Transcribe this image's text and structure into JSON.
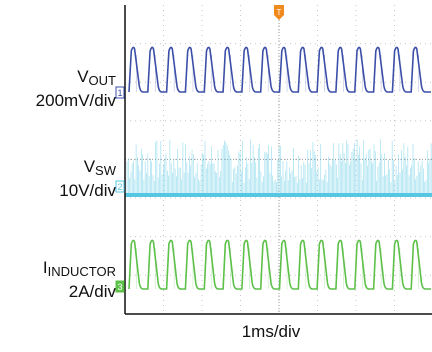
{
  "chart_data": {
    "type": "line",
    "xlabel": "1ms/div",
    "grid": true,
    "series": [
      {
        "name": "V_OUT",
        "sub": "OUT",
        "scale": "200mV/div",
        "marker": "1",
        "color": "#3c4fa8"
      },
      {
        "name": "V_SW",
        "sub": "SW",
        "scale": "10V/div",
        "marker": "2",
        "color": "#56c7e3"
      },
      {
        "name": "I_INDUCTOR",
        "sub": "INDUCTOR",
        "scale": "2A/div",
        "marker": "3",
        "color": "#5cc049"
      }
    ],
    "trigger_marker": "T",
    "pulse_count": 16
  },
  "labels": {
    "vout_main": "V",
    "vout_sub": "OUT",
    "vout_scale": "200mV/div",
    "vsw_main": "V",
    "vsw_sub": "SW",
    "vsw_scale": "10V/div",
    "ind_main": "I",
    "ind_sub": "INDUCTOR",
    "ind_scale": "2A/div"
  }
}
